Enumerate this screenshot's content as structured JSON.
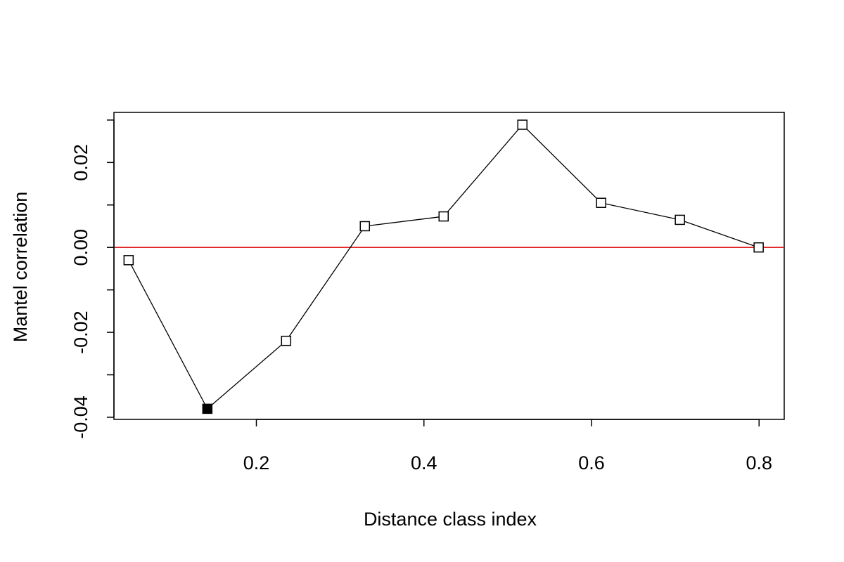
{
  "chart_data": {
    "type": "line",
    "title": "",
    "xlabel": "Distance class index",
    "ylabel": "Mantel correlation",
    "xlim": [
      0.03,
      0.83
    ],
    "ylim": [
      -0.0405,
      0.0318
    ],
    "x_ticks": [
      0.2,
      0.4,
      0.6,
      0.8
    ],
    "x_tick_labels": [
      "0.2",
      "0.4",
      "0.6",
      "0.8"
    ],
    "y_ticks": [
      -0.04,
      -0.03,
      -0.02,
      -0.01,
      0.0,
      0.01,
      0.02,
      0.03
    ],
    "y_tick_labels": [
      "-0.04",
      "",
      "-0.02",
      "",
      "0.00",
      "",
      "0.02",
      ""
    ],
    "grid": false,
    "reference_line": {
      "y": 0.0,
      "color": "#e31a1c"
    },
    "series": [
      {
        "x": [
          0.0475,
          0.1415,
          0.2355,
          0.3295,
          0.4235,
          0.5175,
          0.6115,
          0.7055,
          0.7995
        ],
        "y": [
          -0.003,
          -0.038,
          -0.022,
          0.005,
          0.0073,
          0.0289,
          0.0105,
          0.0065,
          0.0
        ],
        "significant": [
          false,
          true,
          false,
          false,
          false,
          false,
          false,
          false,
          false
        ],
        "marker": "square",
        "color": "#000000"
      }
    ]
  }
}
